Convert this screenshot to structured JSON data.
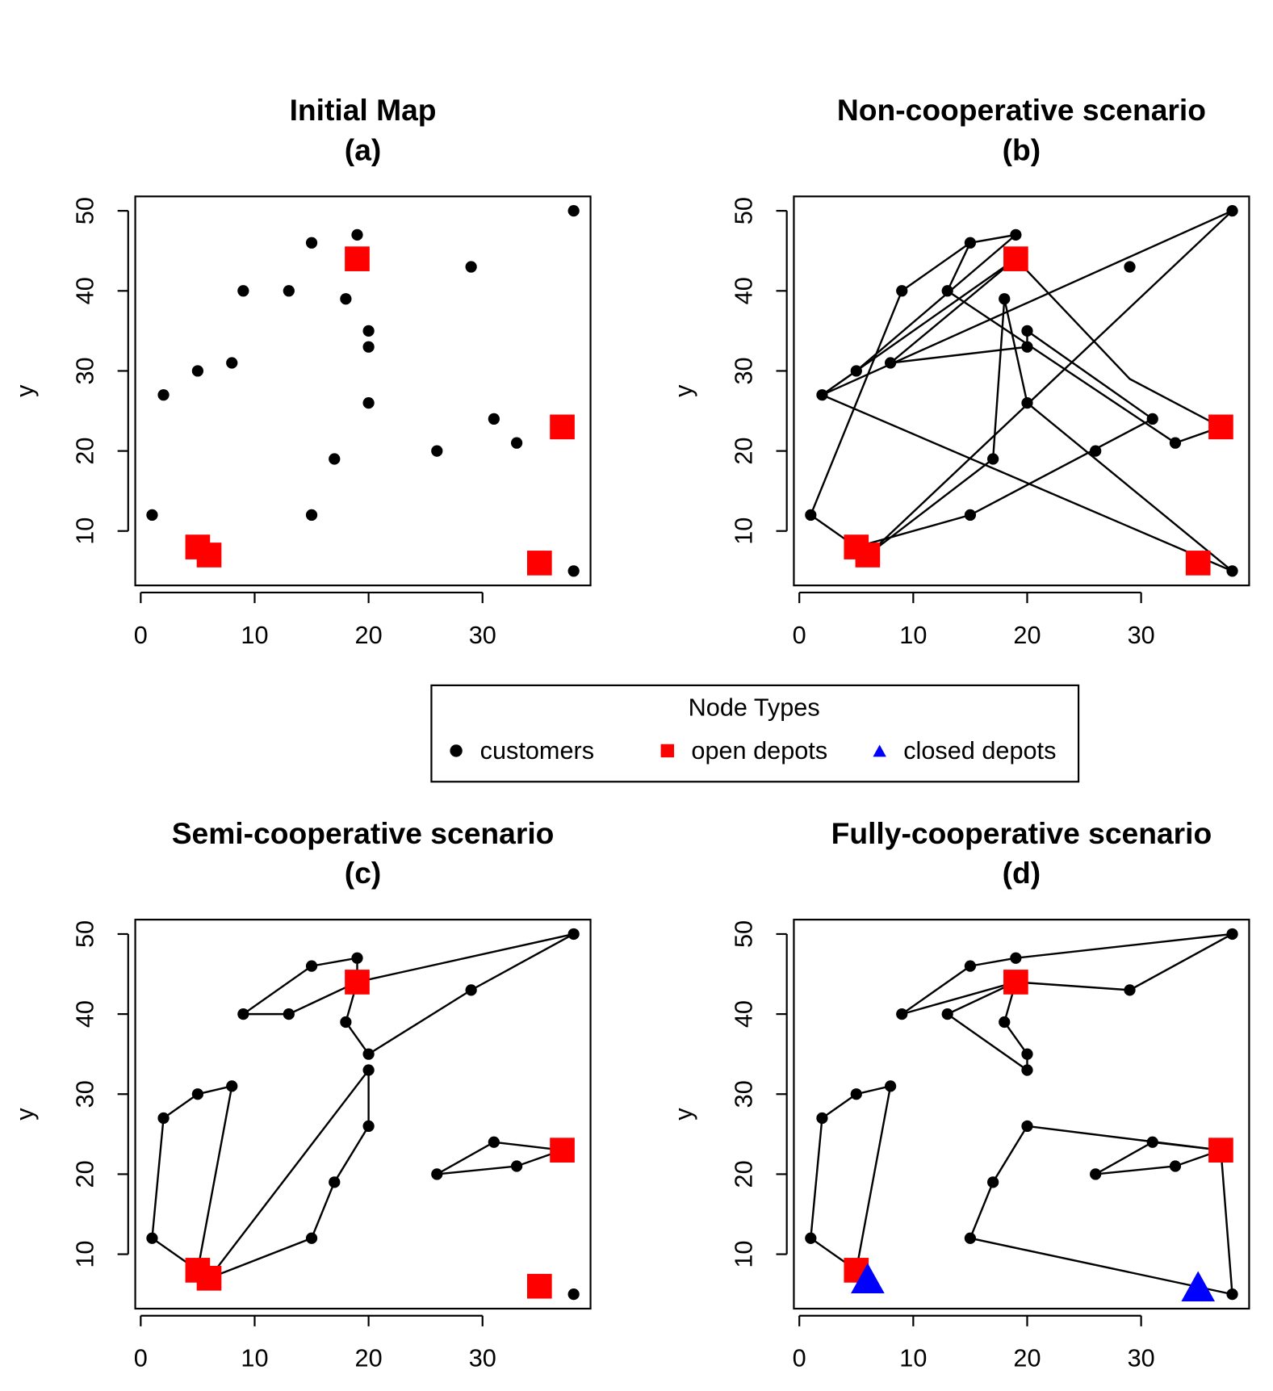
{
  "chart_data": [
    {
      "type": "scatter",
      "title": "Initial Map",
      "subtitle": "(a)",
      "ylabel": "y",
      "xlim": [
        -0.48,
        39.48
      ],
      "ylim": [
        3.2,
        51.8
      ],
      "xticks": [
        0,
        10,
        20,
        30
      ],
      "yticks": [
        10,
        20,
        30,
        40,
        50
      ],
      "customers": {
        "x": [
          1,
          2,
          5,
          8,
          9,
          13,
          15,
          15,
          17,
          18,
          19,
          20,
          20,
          20,
          26,
          29,
          31,
          33,
          38,
          38
        ],
        "y": [
          12,
          27,
          30,
          31,
          40,
          40,
          46,
          12,
          19,
          39,
          47,
          35,
          33,
          26,
          20,
          43,
          24,
          21,
          50,
          5
        ]
      },
      "open_depots": {
        "x": [
          5,
          6,
          19,
          37,
          35
        ],
        "y": [
          8,
          7,
          44,
          23,
          6
        ]
      },
      "closed_depots": {
        "x": [],
        "y": []
      },
      "routes": []
    },
    {
      "type": "scatter",
      "title": "Non-cooperative scenario",
      "subtitle": "(b)",
      "ylabel": "y",
      "xlim": [
        -0.48,
        39.48
      ],
      "ylim": [
        3.2,
        51.8
      ],
      "xticks": [
        0,
        10,
        20,
        30
      ],
      "yticks": [
        10,
        20,
        30,
        40,
        50
      ],
      "customers": {
        "x": [
          1,
          2,
          5,
          8,
          9,
          13,
          15,
          15,
          17,
          18,
          19,
          20,
          20,
          20,
          26,
          29,
          31,
          33,
          38,
          38
        ],
        "y": [
          12,
          27,
          30,
          31,
          40,
          40,
          46,
          12,
          19,
          39,
          47,
          35,
          33,
          26,
          20,
          43,
          24,
          21,
          50,
          5
        ]
      },
      "open_depots": {
        "x": [
          5,
          6,
          19,
          37,
          35
        ],
        "y": [
          8,
          7,
          44,
          23,
          6
        ]
      },
      "closed_depots": {
        "x": [],
        "y": []
      },
      "routes": [
        {
          "x": [
            5,
            1,
            9,
            15,
            19,
            5,
            2,
            38,
            20,
            18,
            17,
            6
          ],
          "y": [
            8,
            12,
            40,
            46,
            47,
            30,
            27,
            5,
            26,
            39,
            19,
            7
          ]
        },
        {
          "x": [
            19,
            29,
            37,
            33,
            13,
            15
          ],
          "y": [
            44,
            29,
            23,
            21,
            40,
            46
          ]
        },
        {
          "x": [
            19,
            8,
            20,
            20,
            31,
            15,
            5
          ],
          "y": [
            44,
            31,
            33,
            35,
            24,
            12,
            8
          ]
        },
        {
          "x": [
            6,
            38,
            2,
            19
          ],
          "y": [
            7,
            50,
            27,
            44
          ]
        }
      ]
    },
    {
      "type": "scatter",
      "title": "Semi-cooperative scenario",
      "subtitle": "(c)",
      "ylabel": "y",
      "xlim": [
        -0.48,
        39.48
      ],
      "ylim": [
        3.2,
        51.8
      ],
      "xticks": [
        0,
        10,
        20,
        30
      ],
      "yticks": [
        10,
        20,
        30,
        40,
        50
      ],
      "customers": {
        "x": [
          1,
          2,
          5,
          8,
          9,
          13,
          15,
          15,
          17,
          18,
          19,
          20,
          20,
          20,
          26,
          29,
          31,
          33,
          38,
          38
        ],
        "y": [
          12,
          27,
          30,
          31,
          40,
          40,
          46,
          12,
          19,
          39,
          47,
          35,
          33,
          26,
          20,
          43,
          24,
          21,
          50,
          5
        ]
      },
      "open_depots": {
        "x": [
          5,
          6,
          19,
          37,
          35
        ],
        "y": [
          8,
          7,
          44,
          23,
          6
        ]
      },
      "closed_depots": {
        "x": [],
        "y": []
      },
      "routes": [
        {
          "x": [
            19,
            19,
            15,
            9,
            13,
            19
          ],
          "y": [
            44,
            47,
            46,
            40,
            40,
            44
          ]
        },
        {
          "x": [
            19,
            38,
            29,
            20,
            18,
            19
          ],
          "y": [
            44,
            50,
            43,
            35,
            39,
            44
          ]
        },
        {
          "x": [
            5,
            1,
            2,
            5,
            8,
            5
          ],
          "y": [
            8,
            12,
            27,
            30,
            31,
            8
          ]
        },
        {
          "x": [
            6,
            20,
            20,
            17,
            15,
            6
          ],
          "y": [
            7,
            33,
            26,
            19,
            12,
            7
          ]
        },
        {
          "x": [
            37,
            31,
            26,
            33,
            37
          ],
          "y": [
            23,
            24,
            20,
            21,
            23
          ]
        }
      ]
    },
    {
      "type": "scatter",
      "title": "Fully-cooperative scenario",
      "subtitle": "(d)",
      "ylabel": "y",
      "xlim": [
        -0.48,
        39.48
      ],
      "ylim": [
        3.2,
        51.8
      ],
      "xticks": [
        0,
        10,
        20,
        30
      ],
      "yticks": [
        10,
        20,
        30,
        40,
        50
      ],
      "customers": {
        "x": [
          1,
          2,
          5,
          8,
          9,
          13,
          15,
          15,
          17,
          18,
          19,
          20,
          20,
          20,
          26,
          29,
          31,
          33,
          38,
          38
        ],
        "y": [
          12,
          27,
          30,
          31,
          40,
          40,
          46,
          12,
          19,
          39,
          47,
          35,
          33,
          26,
          20,
          43,
          24,
          21,
          50,
          5
        ]
      },
      "open_depots": {
        "x": [
          5,
          19,
          37
        ],
        "y": [
          8,
          44,
          23
        ]
      },
      "closed_depots": {
        "x": [
          6,
          35
        ],
        "y": [
          7,
          6
        ]
      },
      "routes": [
        {
          "x": [
            19,
            9,
            15,
            19,
            38,
            29,
            19
          ],
          "y": [
            44,
            40,
            46,
            47,
            50,
            43,
            44
          ]
        },
        {
          "x": [
            19,
            13,
            20,
            20,
            18,
            19
          ],
          "y": [
            44,
            40,
            33,
            35,
            39,
            44
          ]
        },
        {
          "x": [
            5,
            1,
            2,
            5,
            8,
            5
          ],
          "y": [
            8,
            12,
            27,
            30,
            31,
            8
          ]
        },
        {
          "x": [
            37,
            31,
            26,
            33,
            37
          ],
          "y": [
            23,
            24,
            20,
            21,
            23
          ]
        },
        {
          "x": [
            37,
            38,
            15,
            17,
            20,
            37
          ],
          "y": [
            23,
            5,
            12,
            19,
            26,
            23
          ]
        }
      ]
    }
  ],
  "legend": {
    "title": "Node Types",
    "entries": [
      {
        "name": "customers",
        "color": "#000000",
        "marker": "circle"
      },
      {
        "name": "open depots",
        "color": "#ff0000",
        "marker": "square"
      },
      {
        "name": "closed depots",
        "color": "#0000ff",
        "marker": "triangle"
      }
    ]
  }
}
